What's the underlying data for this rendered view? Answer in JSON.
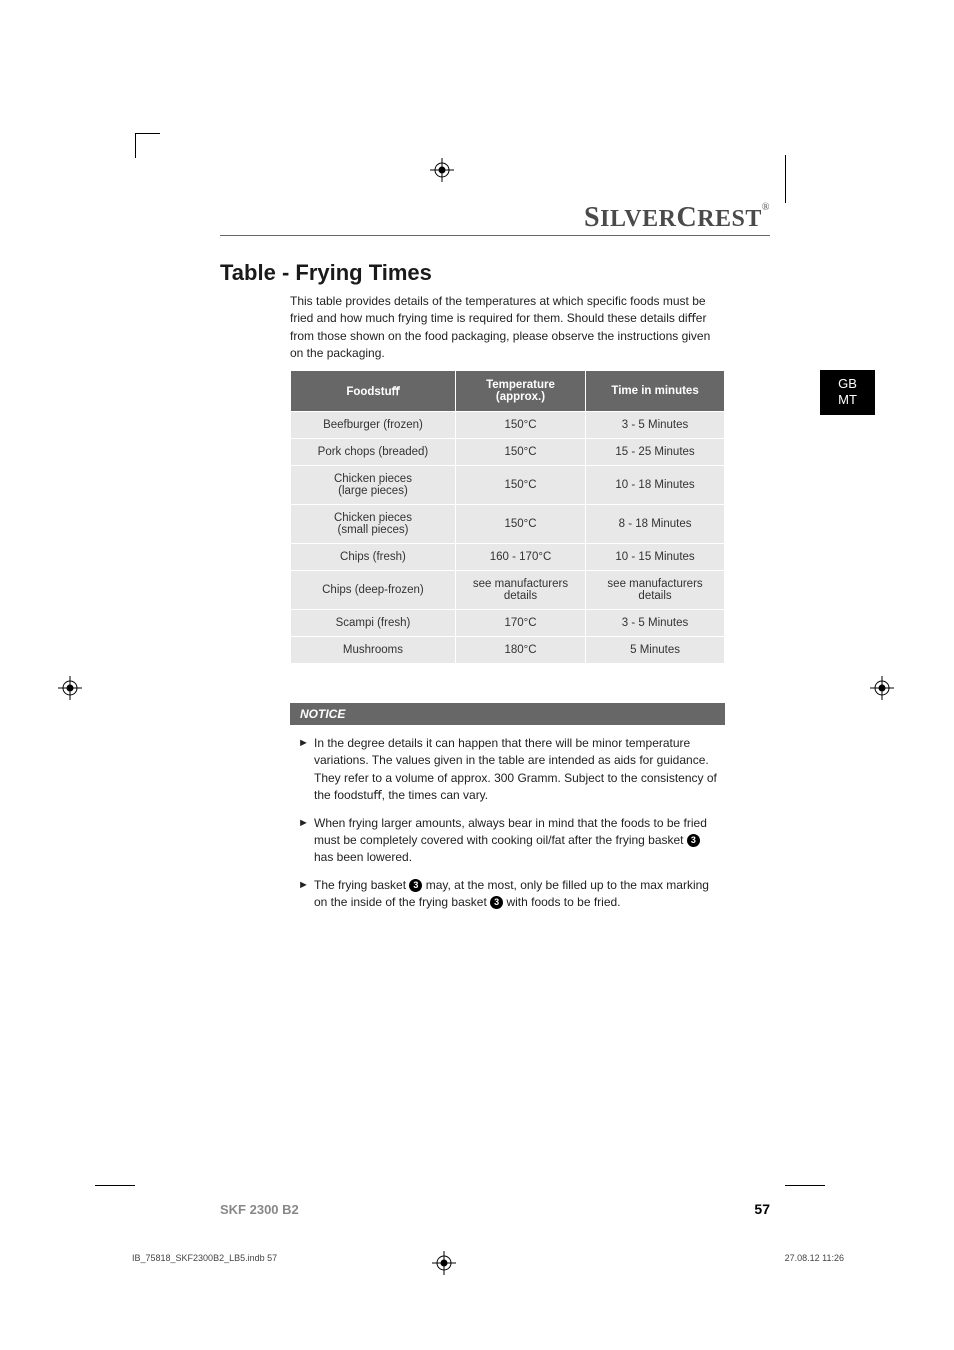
{
  "brand": {
    "silver": "ILVER",
    "crest": "REST",
    "reg": "®"
  },
  "heading": "Table - Frying Times",
  "intro": "This table provides details of the temperatures at which speciﬁc foods must be fried and how much frying time is required for them. Should these details diﬀer from those shown on the food packaging, please observe the instructions given on the packaging.",
  "tab": {
    "line1": "GB",
    "line2": "MT"
  },
  "table": {
    "headers": {
      "food": "Foodstuﬀ",
      "temp_line1": "Temperature",
      "temp_line2": "(approx.)",
      "time": "Time in minutes"
    },
    "rows": [
      {
        "food": "Beefburger (frozen)",
        "temp": "150°C",
        "time": "3 - 5 Minutes"
      },
      {
        "food": "Pork chops (breaded)",
        "temp": "150°C",
        "time": "15 - 25 Minutes"
      },
      {
        "food": "Chicken pieces\n(large pieces)",
        "temp": "150°C",
        "time": "10 - 18 Minutes"
      },
      {
        "food": "Chicken pieces\n(small pieces)",
        "temp": "150°C",
        "time": "8 - 18 Minutes"
      },
      {
        "food": "Chips (fresh)",
        "temp": "160 - 170°C",
        "time": "10 - 15 Minutes"
      },
      {
        "food": "Chips (deep-frozen)",
        "temp": "see manufacturers details",
        "time": "see manufacturers details"
      },
      {
        "food": "Scampi (fresh)",
        "temp": "170°C",
        "time": "3 - 5 Minutes"
      },
      {
        "food": "Mushrooms",
        "temp": "180°C",
        "time": "5 Minutes"
      }
    ]
  },
  "notice": {
    "label": "NOTICE",
    "items": [
      {
        "parts": [
          {
            "t": "In the degree details it can happen that there will be minor temperature variations. The values given in the table are intended as aids for guidance. They refer to a volume of approx. 300 Gramm. Subject to the consistency of the foodstuﬀ, the times can vary."
          }
        ]
      },
      {
        "parts": [
          {
            "t": "When frying larger amounts, always bear in mind that the foods to be fried must be completely covered with cooking oil/fat after the frying basket "
          },
          {
            "c": "3"
          },
          {
            "t": " has been lowered."
          }
        ]
      },
      {
        "parts": [
          {
            "t": "The frying basket "
          },
          {
            "c": "3"
          },
          {
            "t": " may, at the most, only be ﬁlled up to the max marking on the inside of the frying basket "
          },
          {
            "c": "3"
          },
          {
            "t": " with foods to be fried."
          }
        ]
      }
    ]
  },
  "footer": {
    "model": "SKF 2300 B2",
    "page": "57"
  },
  "slug": {
    "left": "IB_75818_SKF2300B2_LB5.indb   57",
    "right": "27.08.12   11:26"
  }
}
